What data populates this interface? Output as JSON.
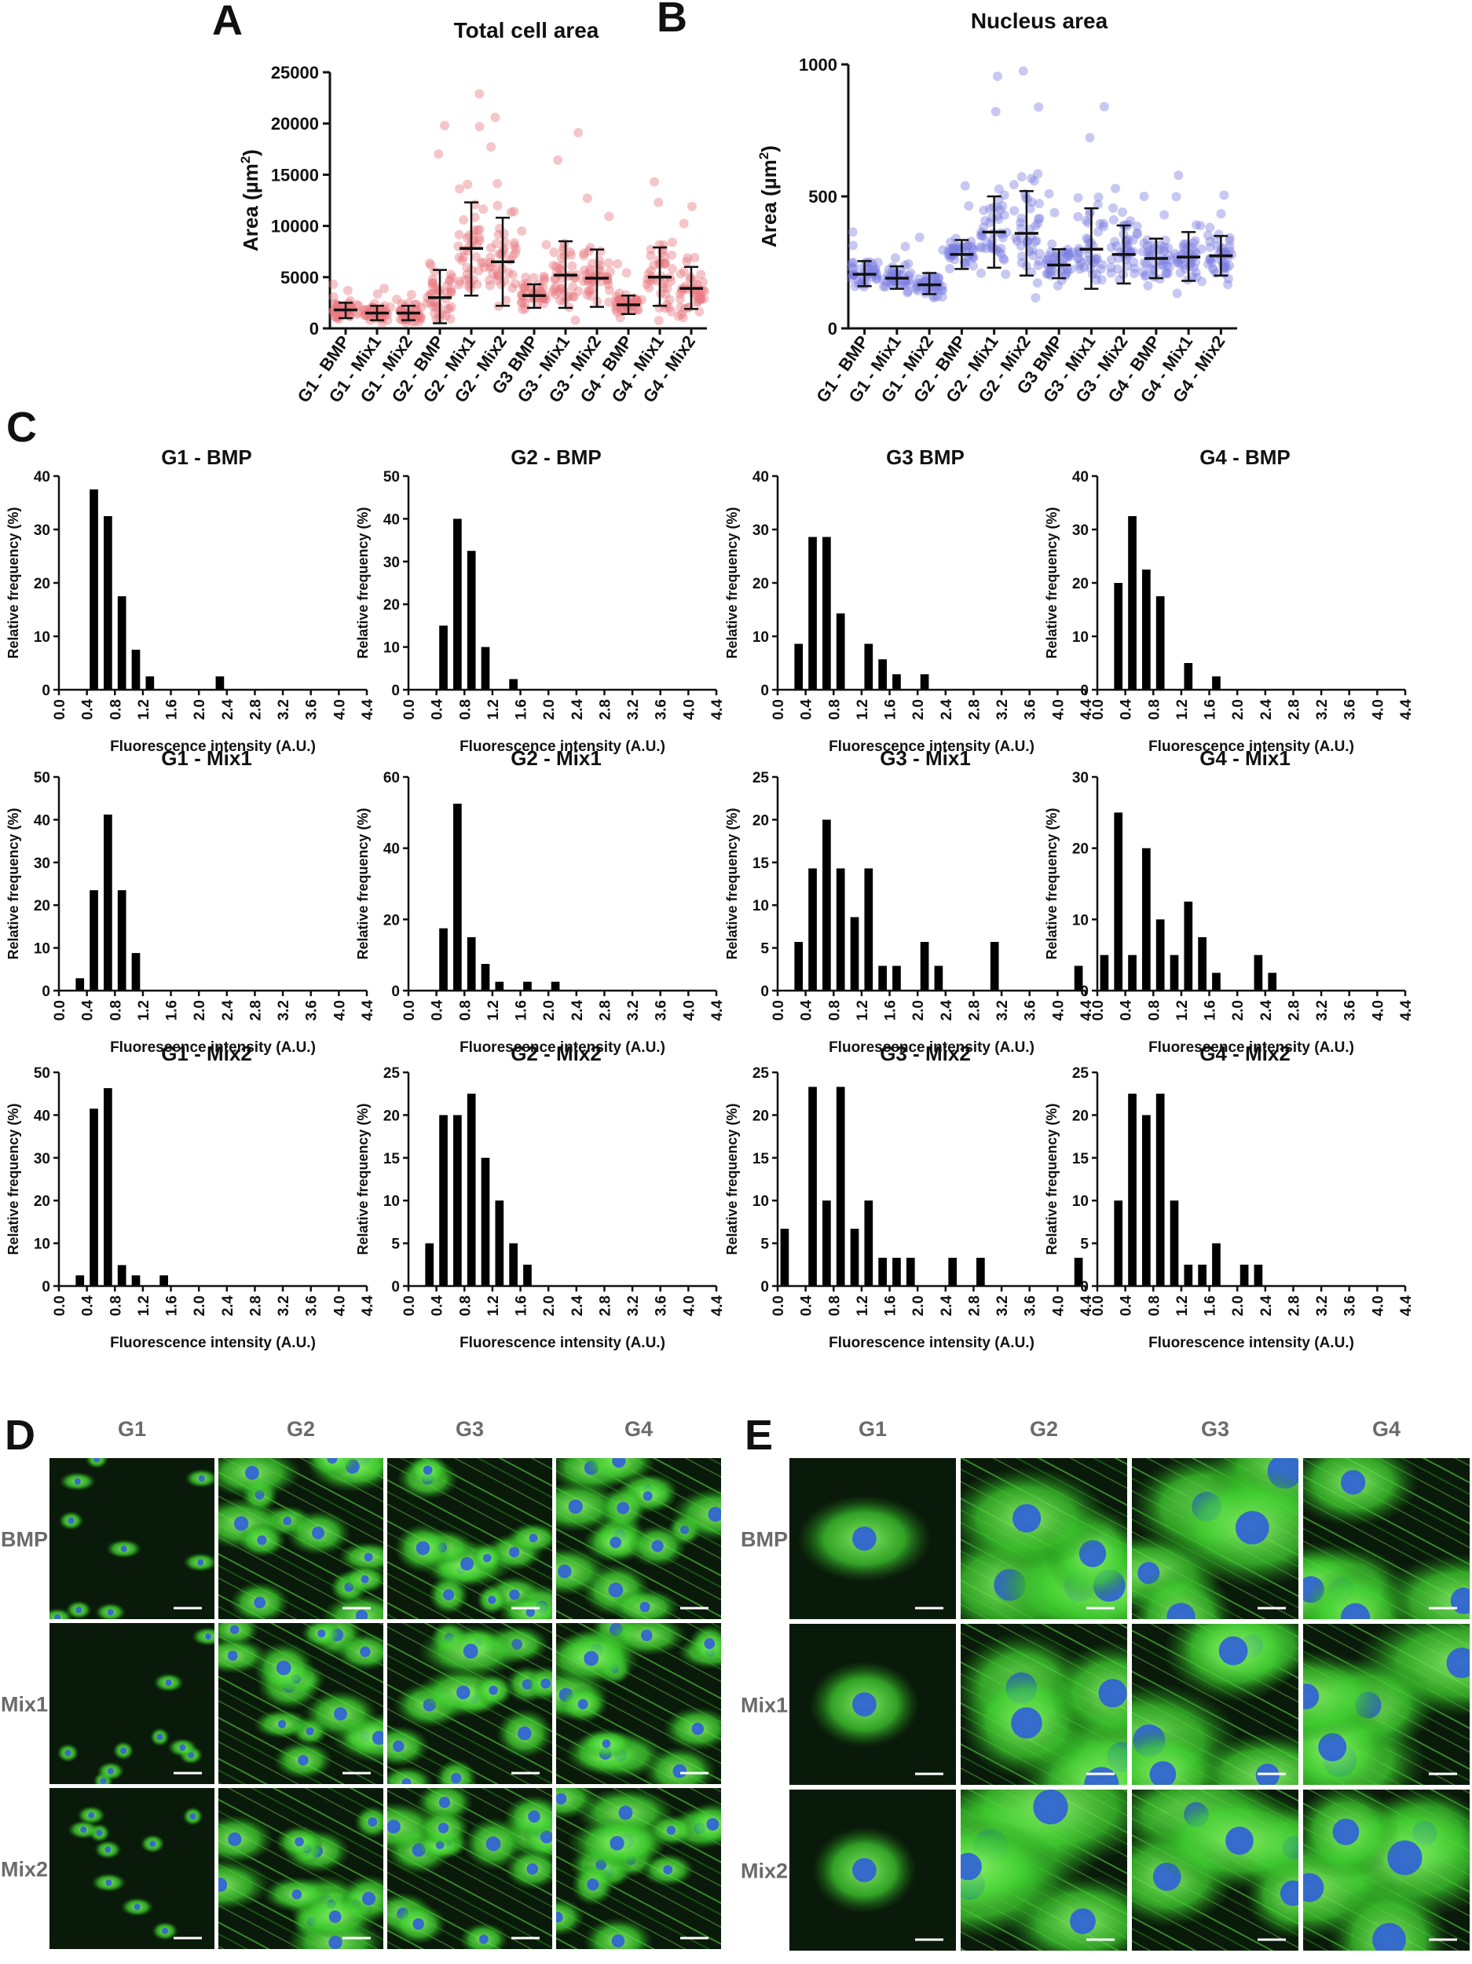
{
  "panels": {
    "A": {
      "letter": "A"
    },
    "B": {
      "letter": "B"
    },
    "C": {
      "letter": "C"
    },
    "D": {
      "letter": "D",
      "columns": [
        "G1",
        "G2",
        "G3",
        "G4"
      ],
      "rows": [
        "BMP",
        "Mix1",
        "Mix2"
      ]
    },
    "E": {
      "letter": "E",
      "columns": [
        "G1",
        "G2",
        "G3",
        "G4"
      ],
      "rows": [
        "BMP",
        "Mix1",
        "Mix2"
      ]
    }
  },
  "chart_data": [
    {
      "id": "A",
      "type": "scatter",
      "title": "Total cell area",
      "ylabel": "Area (µm²)",
      "ylabel_main": "Area (",
      "ylabel_unit": "µm",
      "ylabel_sup": "2",
      "ylabel_close": ")",
      "ylim": [
        0,
        25000
      ],
      "yticks": [
        0,
        5000,
        10000,
        15000,
        20000,
        25000
      ],
      "ytick_labels": [
        "0",
        "5000",
        "10000",
        "15000",
        "20000",
        "25000"
      ],
      "point_color": "#e8777e",
      "categories": [
        "G1 - BMP",
        "G1 - Mix1",
        "G1 - Mix2",
        "G2 - BMP",
        "G2 - Mix1",
        "G2 - Mix2",
        "G3 BMP",
        "G3 - Mix1",
        "G3 - Mix2",
        "G4 - BMP",
        "G4 - Mix1",
        "G4 - Mix2"
      ],
      "mean": [
        1800,
        1500,
        1500,
        3000,
        7800,
        6500,
        3200,
        5200,
        4900,
        2300,
        5000,
        3900
      ],
      "sd_low": [
        1000,
        800,
        800,
        500,
        3200,
        2200,
        2000,
        2000,
        2100,
        1400,
        2200,
        1900
      ],
      "sd_high": [
        2500,
        2200,
        2200,
        5700,
        12300,
        10800,
        4300,
        8500,
        7700,
        3200,
        7900,
        6000
      ],
      "max": [
        4300,
        3900,
        3300,
        19800,
        22900,
        20600,
        9500,
        19100,
        12700,
        6300,
        14300,
        11900
      ]
    },
    {
      "id": "B",
      "type": "scatter",
      "title": "Nucleus area",
      "ylabel": "Area (µm²)",
      "ylabel_main": "Area (",
      "ylabel_unit": "µm",
      "ylabel_sup": "2",
      "ylabel_close": ")",
      "ylim": [
        0,
        1000
      ],
      "yticks": [
        0,
        500,
        1000
      ],
      "ytick_labels": [
        "0",
        "500",
        "1000"
      ],
      "point_color": "#7b7fe0",
      "categories": [
        "G1 - BMP",
        "G1 - Mix1",
        "G1 - Mix2",
        "G2 - BMP",
        "G2 - Mix1",
        "G2 - Mix2",
        "G3 BMP",
        "G3 - Mix1",
        "G3 - Mix2",
        "G4 - BMP",
        "G4 - Mix1",
        "G4 - Mix2"
      ],
      "mean": [
        205,
        190,
        165,
        280,
        365,
        360,
        240,
        300,
        280,
        265,
        270,
        275
      ],
      "sd_low": [
        160,
        150,
        130,
        225,
        230,
        200,
        190,
        150,
        170,
        190,
        180,
        200
      ],
      "sd_high": [
        255,
        235,
        210,
        335,
        500,
        520,
        300,
        455,
        390,
        340,
        365,
        350
      ],
      "max": [
        365,
        310,
        345,
        540,
        955,
        975,
        510,
        840,
        530,
        500,
        580,
        505
      ]
    },
    {
      "id": "C1",
      "type": "bar",
      "title": "G1 - BMP",
      "ylabel": "Relative frequency (%)",
      "xlabel": "Fluorescence intensity (A.U.)",
      "ylim": [
        0,
        40
      ],
      "yticks": [
        0,
        10,
        20,
        30,
        40
      ],
      "values": [
        0,
        0,
        37.5,
        32.5,
        17.5,
        7.5,
        2.5,
        0,
        0,
        0,
        0,
        2.5,
        0,
        0,
        0,
        0,
        0,
        0,
        0,
        0,
        0,
        0
      ]
    },
    {
      "id": "C2",
      "type": "bar",
      "title": "G2 - BMP",
      "ylabel": "Relative frequency (%)",
      "xlabel": "Fluorescence intensity (A.U.)",
      "ylim": [
        0,
        50
      ],
      "yticks": [
        0,
        10,
        20,
        30,
        40,
        50
      ],
      "values": [
        0,
        0,
        15,
        40,
        32.5,
        10,
        0,
        2.5,
        0,
        0,
        0,
        0,
        0,
        0,
        0,
        0,
        0,
        0,
        0,
        0,
        0,
        0
      ]
    },
    {
      "id": "C3",
      "type": "bar",
      "title": "G3 BMP",
      "ylabel": "Relative frequency (%)",
      "xlabel": "Fluorescence intensity (A.U.)",
      "ylim": [
        0,
        40
      ],
      "yticks": [
        0,
        10,
        20,
        30,
        40
      ],
      "values": [
        0,
        8.6,
        28.6,
        28.6,
        14.3,
        0,
        8.6,
        5.7,
        2.9,
        0,
        2.9,
        0,
        0,
        0,
        0,
        0,
        0,
        0,
        0,
        0,
        0,
        0
      ]
    },
    {
      "id": "C4",
      "type": "bar",
      "title": "G4 - BMP",
      "ylabel": "Relative frequency (%)",
      "xlabel": "Fluorescence intensity (A.U.)",
      "ylim": [
        0,
        40
      ],
      "yticks": [
        0,
        10,
        20,
        30,
        40
      ],
      "values": [
        0,
        20,
        32.5,
        22.5,
        17.5,
        0,
        5,
        0,
        2.5,
        0,
        0,
        0,
        0,
        0,
        0,
        0,
        0,
        0,
        0,
        0,
        0,
        0
      ]
    },
    {
      "id": "C5",
      "type": "bar",
      "title": "G1 - Mix1",
      "ylabel": "Relative frequency (%)",
      "xlabel": "Fluorescence intensity (A.U.)",
      "ylim": [
        0,
        50
      ],
      "yticks": [
        0,
        10,
        20,
        30,
        40,
        50
      ],
      "values": [
        0,
        2.9,
        23.5,
        41.2,
        23.5,
        8.8,
        0,
        0,
        0,
        0,
        0,
        0,
        0,
        0,
        0,
        0,
        0,
        0,
        0,
        0,
        0,
        0
      ]
    },
    {
      "id": "C6",
      "type": "bar",
      "title": "G2 - Mix1",
      "ylabel": "Relative frequency (%)",
      "xlabel": "Fluorescence intensity (A.U.)",
      "ylim": [
        0,
        60
      ],
      "yticks": [
        0,
        20,
        40,
        60
      ],
      "values": [
        0,
        0,
        17.5,
        52.5,
        15,
        7.5,
        2.5,
        0,
        2.5,
        0,
        2.5,
        0,
        0,
        0,
        0,
        0,
        0,
        0,
        0,
        0,
        0,
        0
      ]
    },
    {
      "id": "C7",
      "type": "bar",
      "title": "G3 - Mix1",
      "ylabel": "Relative frequency (%)",
      "xlabel": "Fluorescence intensity (A.U.)",
      "ylim": [
        0,
        25
      ],
      "yticks": [
        0,
        5,
        10,
        15,
        20,
        25
      ],
      "values": [
        0,
        5.7,
        14.3,
        20,
        14.3,
        8.6,
        14.3,
        2.9,
        2.9,
        0,
        5.7,
        2.9,
        0,
        0,
        0,
        5.7,
        0,
        0,
        0,
        0,
        0,
        2.9
      ]
    },
    {
      "id": "C8",
      "type": "bar",
      "title": "G4 - Mix1",
      "ylabel": "Relative frequency (%)",
      "xlabel": "Fluorescence intensity (A.U.)",
      "ylim": [
        0,
        30
      ],
      "yticks": [
        0,
        10,
        20,
        30
      ],
      "values": [
        5,
        25,
        5,
        20,
        10,
        5,
        12.5,
        7.5,
        2.5,
        0,
        0,
        5,
        2.5,
        0,
        0,
        0,
        0,
        0,
        0,
        0,
        0,
        0
      ]
    },
    {
      "id": "C9",
      "type": "bar",
      "title": "G1 - Mix2",
      "ylabel": "Relative frequency (%)",
      "xlabel": "Fluorescence intensity (A.U.)",
      "ylim": [
        0,
        50
      ],
      "yticks": [
        0,
        10,
        20,
        30,
        40,
        50
      ],
      "values": [
        0,
        2.5,
        41.5,
        46.3,
        4.9,
        2.5,
        0,
        2.5,
        0,
        0,
        0,
        0,
        0,
        0,
        0,
        0,
        0,
        0,
        0,
        0,
        0,
        0
      ]
    },
    {
      "id": "C10",
      "type": "bar",
      "title": "G2 - Mix2",
      "ylabel": "Relative frequency (%)",
      "xlabel": "Fluorescence intensity (A.U.)",
      "ylim": [
        0,
        25
      ],
      "yticks": [
        0,
        5,
        10,
        15,
        20,
        25
      ],
      "values": [
        0,
        5,
        20,
        20,
        22.5,
        15,
        10,
        5,
        2.5,
        0,
        0,
        0,
        0,
        0,
        0,
        0,
        0,
        0,
        0,
        0,
        0,
        0
      ]
    },
    {
      "id": "C11",
      "type": "bar",
      "title": "G3 - Mix2",
      "ylabel": "Relative frequency (%)",
      "xlabel": "Fluorescence intensity (A.U.)",
      "ylim": [
        0,
        25
      ],
      "yticks": [
        0,
        5,
        10,
        15,
        20,
        25
      ],
      "values": [
        6.7,
        0,
        23.3,
        10,
        23.3,
        6.7,
        10,
        3.3,
        3.3,
        3.3,
        0,
        0,
        3.3,
        0,
        3.3,
        0,
        0,
        0,
        0,
        0,
        0,
        3.3
      ]
    },
    {
      "id": "C12",
      "type": "bar",
      "title": "G4 - Mix2",
      "ylabel": "Relative frequency (%)",
      "xlabel": "Fluorescence intensity (A.U.)",
      "ylim": [
        0,
        25
      ],
      "yticks": [
        0,
        5,
        10,
        15,
        20,
        25
      ],
      "values": [
        0,
        10,
        22.5,
        20,
        22.5,
        10,
        2.5,
        2.5,
        5,
        0,
        2.5,
        2.5,
        0,
        0,
        0,
        0,
        0,
        0,
        0,
        0,
        0,
        0
      ]
    }
  ],
  "hist_xticks": [
    "0.0",
    "0.4",
    "0.8",
    "1.2",
    "1.6",
    "2.0",
    "2.4",
    "2.8",
    "3.2",
    "3.6",
    "4.0",
    "4.4"
  ],
  "micrograph_colors": {
    "actin": "#3fcf2f",
    "nucleus": "#2f5fd8",
    "background": "#0a1a0a"
  }
}
